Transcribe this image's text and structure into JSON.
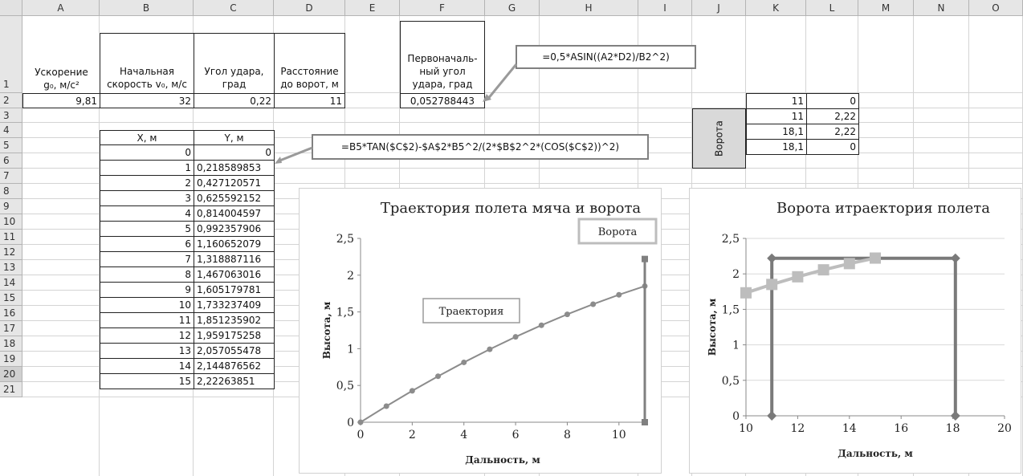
{
  "columns": [
    "A",
    "B",
    "C",
    "D",
    "E",
    "F",
    "G",
    "H",
    "I",
    "J",
    "K",
    "L",
    "M",
    "N",
    "O"
  ],
  "rows": [
    "1",
    "2",
    "3",
    "4",
    "5",
    "6",
    "7",
    "8",
    "9",
    "10",
    "11",
    "12",
    "13",
    "14",
    "15",
    "16",
    "17",
    "18",
    "19",
    "20",
    "21"
  ],
  "headers": {
    "A": [
      "Ускорение",
      "g₀, м/c²"
    ],
    "B": [
      "Начальная",
      "скорость v₀, м/с"
    ],
    "C": [
      "Угол удара,",
      "град"
    ],
    "D": [
      "Расстояние",
      "до ворот, м"
    ],
    "F": [
      "Первоначаль-",
      "ный угол",
      "удара, град"
    ]
  },
  "row2": {
    "A": "9,81",
    "B": "32",
    "C": "0,22",
    "D": "11",
    "F": "0,052788443"
  },
  "xy_headers": {
    "x": "X, м",
    "y": "Y, м"
  },
  "xy_table": [
    {
      "x": "0",
      "y": "0"
    },
    {
      "x": "1",
      "y": "0,218589853"
    },
    {
      "x": "2",
      "y": "0,427120571"
    },
    {
      "x": "3",
      "y": "0,625592152"
    },
    {
      "x": "4",
      "y": "0,814004597"
    },
    {
      "x": "5",
      "y": "0,992357906"
    },
    {
      "x": "6",
      "y": "1,160652079"
    },
    {
      "x": "7",
      "y": "1,318887116"
    },
    {
      "x": "8",
      "y": "1,467063016"
    },
    {
      "x": "9",
      "y": "1,605179781"
    },
    {
      "x": "10",
      "y": "1,733237409"
    },
    {
      "x": "11",
      "y": "1,851235902"
    },
    {
      "x": "12",
      "y": "1,959175258"
    },
    {
      "x": "13",
      "y": "2,057055478"
    },
    {
      "x": "14",
      "y": "2,144876562"
    },
    {
      "x": "15",
      "y": "2,22263851"
    }
  ],
  "gate_label": "Ворота",
  "gate_table": [
    {
      "k": "11",
      "l": "0"
    },
    {
      "k": "11",
      "l": "2,22"
    },
    {
      "k": "18,1",
      "l": "2,22"
    },
    {
      "k": "18,1",
      "l": "0"
    }
  ],
  "formulas": {
    "angle": "=0,5*ASIN((A2*D2)/B2^2)",
    "trajectory": "=B5*TAN($C$2)-$A$2*B5^2/(2*$B$2^2*(COS($C$2))^2)"
  },
  "colors": {
    "trajectory_line": "#8c8c8c",
    "gate_line": "#808080",
    "chart2_traj": "#bdbdbd",
    "chart2_gate": "#7a7a7a"
  },
  "chart_data": [
    {
      "type": "line",
      "title": "Траектория полета мяча и ворота",
      "xlabel": "Дальность, м",
      "ylabel": "Высота, м",
      "xlim": [
        0,
        11
      ],
      "ylim": [
        0,
        2.5
      ],
      "xticks": [
        "0",
        "2",
        "4",
        "6",
        "8",
        "10"
      ],
      "yticks": [
        "0",
        "0,5",
        "1",
        "1,5",
        "2",
        "2,5"
      ],
      "series": [
        {
          "name": "Траектория",
          "x": [
            0,
            1,
            2,
            3,
            4,
            5,
            6,
            7,
            8,
            9,
            10,
            11
          ],
          "y": [
            0,
            0.2186,
            0.4271,
            0.6256,
            0.814,
            0.9924,
            1.1607,
            1.3189,
            1.4671,
            1.6052,
            1.7332,
            1.8512
          ]
        },
        {
          "name": "Ворота",
          "x": [
            11,
            11
          ],
          "y": [
            0,
            2.22
          ]
        }
      ]
    },
    {
      "type": "line",
      "title": "Ворота итраектория полета",
      "xlabel": "Дальность, м",
      "ylabel": "Высота, м",
      "xlim": [
        10,
        20
      ],
      "ylim": [
        0,
        2.5
      ],
      "xticks": [
        "10",
        "12",
        "14",
        "16",
        "18",
        "20"
      ],
      "yticks": [
        "0",
        "0,5",
        "1",
        "1,5",
        "2",
        "2,5"
      ],
      "series": [
        {
          "x": [
            11,
            11,
            18.1,
            18.1
          ],
          "y": [
            0,
            2.22,
            2.22,
            0
          ]
        },
        {
          "x": [
            10,
            11,
            12,
            13,
            14,
            15
          ],
          "y": [
            1.7332,
            1.8512,
            1.9592,
            2.0571,
            2.1449,
            2.2226
          ]
        }
      ]
    }
  ]
}
